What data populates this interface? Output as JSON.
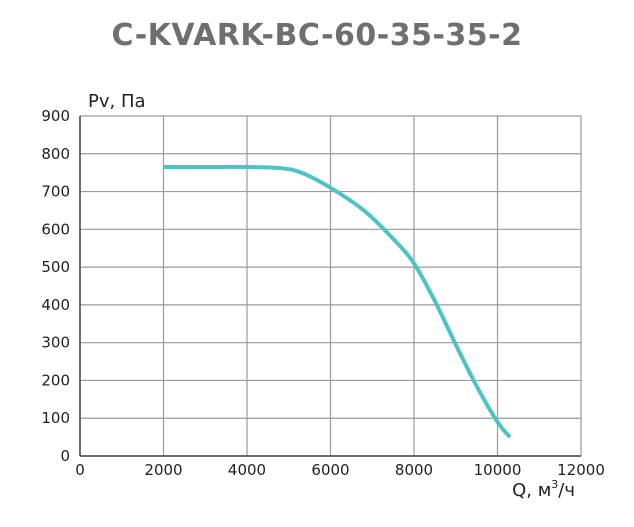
{
  "title": "C-KVARK-BC-60-35-35-2",
  "chart_data": {
    "type": "line",
    "title": "C-KVARK-BC-60-35-35-2",
    "xlabel": "Q, м",
    "xlabel_sup": "3",
    "xlabel_suffix": "/ч",
    "ylabel": "Pv, Па",
    "xlim": [
      0,
      12000
    ],
    "ylim": [
      0,
      900
    ],
    "xticks": [
      "0",
      "2000",
      "4000",
      "6000",
      "8000",
      "10000",
      "12000"
    ],
    "yticks": [
      "0",
      "100",
      "200",
      "300",
      "400",
      "500",
      "600",
      "700",
      "800",
      "900"
    ],
    "grid": true,
    "series": [
      {
        "color": "#4ec3c5",
        "x": [
          2000,
          3000,
          4000,
          4800,
          5300,
          6000,
          6800,
          7500,
          8000,
          8500,
          9000,
          9500,
          10000,
          10300
        ],
        "y": [
          765,
          765,
          765,
          762,
          750,
          710,
          650,
          575,
          510,
          410,
          295,
          185,
          90,
          50
        ]
      }
    ]
  }
}
